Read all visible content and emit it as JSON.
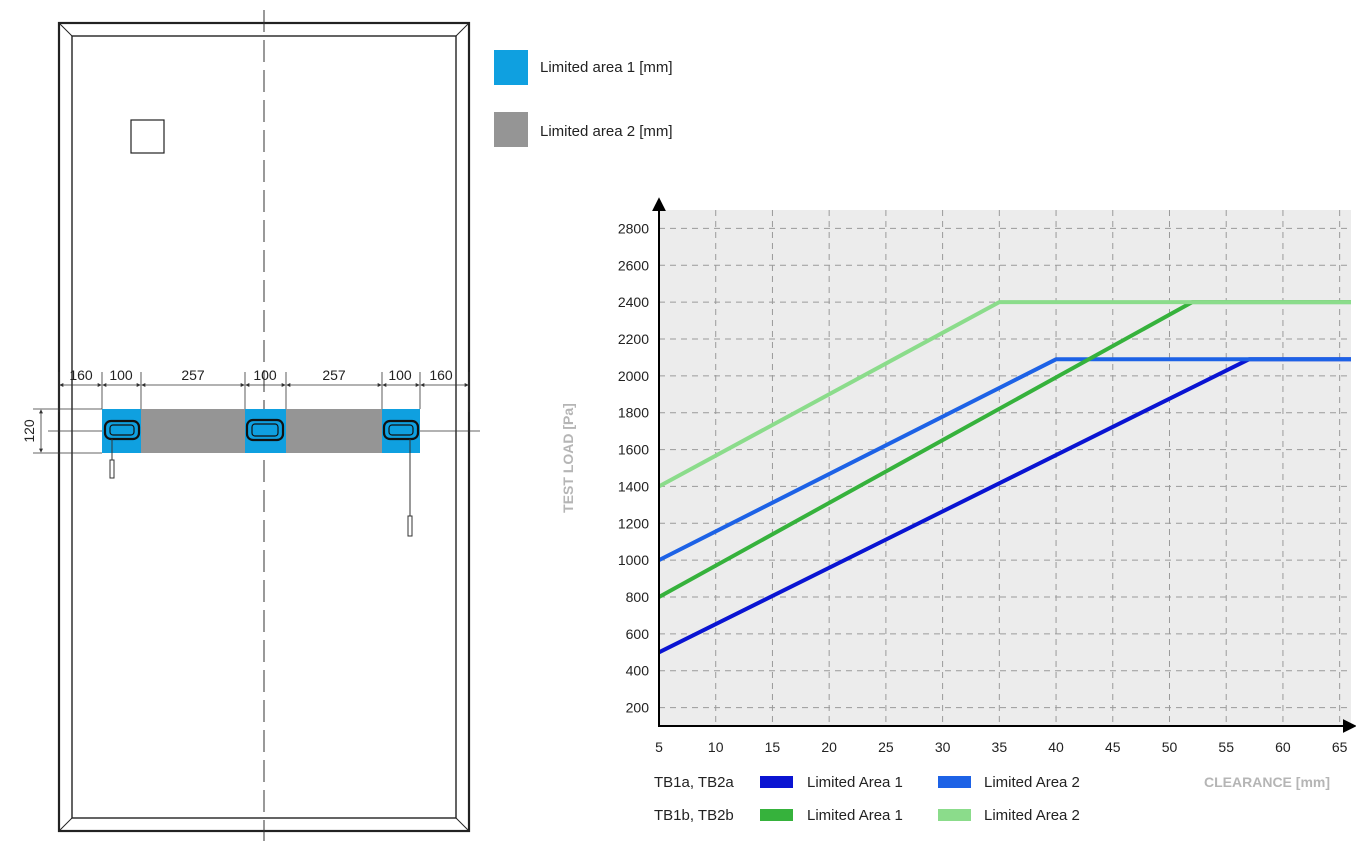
{
  "module_diagram": {
    "dimensions": {
      "left_margin": "160",
      "limited_area_1_left": "100",
      "limited_area_2_left": "257",
      "limited_area_1_center": "100",
      "limited_area_2_right": "257",
      "limited_area_1_right": "100",
      "right_margin": "160",
      "area_height": "120"
    },
    "legend": [
      {
        "label": "Limited area 1 [mm]",
        "color": "#0fa0e0"
      },
      {
        "label": "Limited area 2 [mm]",
        "color": "#959595"
      }
    ]
  },
  "chart_data": {
    "type": "line",
    "xlabel": "CLEARANCE [mm]",
    "ylabel": "TEST LOAD  [Pa]",
    "xlim": [
      5,
      66
    ],
    "ylim": [
      100,
      2900
    ],
    "x_ticks": [
      5,
      10,
      15,
      20,
      25,
      30,
      35,
      40,
      45,
      50,
      55,
      60,
      65
    ],
    "y_ticks": [
      200,
      400,
      600,
      800,
      1000,
      1200,
      1400,
      1600,
      1800,
      2000,
      2200,
      2400,
      2600,
      2800
    ],
    "grid": true,
    "series": [
      {
        "group": "TB1a, TB2a",
        "name": "Limited Area 1",
        "color": "#0a14d2",
        "x": [
          5,
          57,
          66
        ],
        "y": [
          500,
          2090,
          2090
        ]
      },
      {
        "group": "TB1a, TB2a",
        "name": "Limited Area 2",
        "color": "#1d62e6",
        "x": [
          5,
          40,
          66
        ],
        "y": [
          1000,
          2090,
          2090
        ]
      },
      {
        "group": "TB1b, TB2b",
        "name": "Limited Area 1",
        "color": "#36b23c",
        "x": [
          5,
          52,
          66
        ],
        "y": [
          800,
          2400,
          2400
        ]
      },
      {
        "group": "TB1b, TB2b",
        "name": "Limited Area 2",
        "color": "#8bdc8b",
        "x": [
          5,
          35,
          66
        ],
        "y": [
          1400,
          2400,
          2400
        ]
      }
    ]
  }
}
